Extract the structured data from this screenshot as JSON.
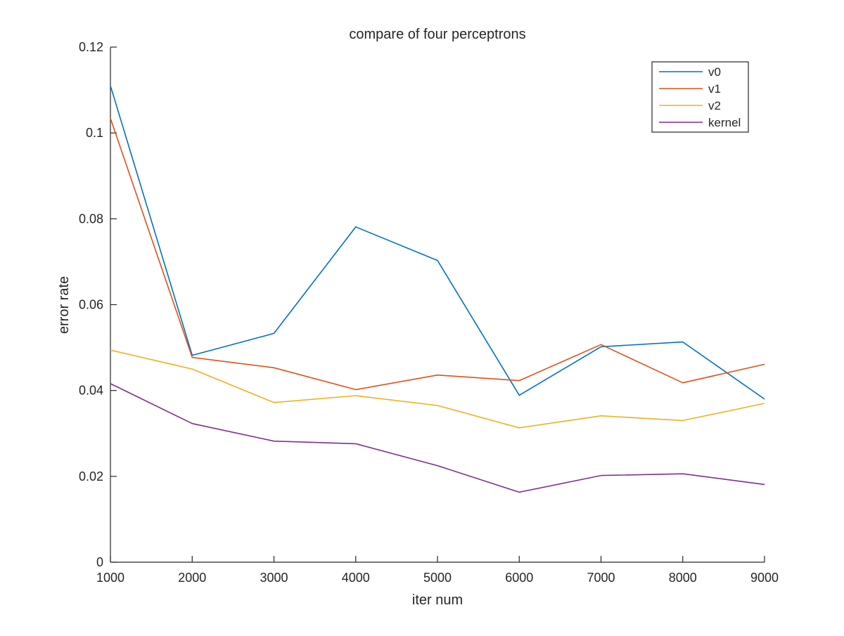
{
  "chart_data": {
    "type": "line",
    "title": "compare of four perceptrons",
    "xlabel": "iter num",
    "ylabel": "error rate",
    "x": [
      1000,
      2000,
      3000,
      4000,
      5000,
      6000,
      7000,
      8000,
      9000
    ],
    "xlim": [
      1000,
      9000
    ],
    "ylim": [
      0,
      0.12
    ],
    "xticks": [
      1000,
      2000,
      3000,
      4000,
      5000,
      6000,
      7000,
      8000,
      9000
    ],
    "xtick_labels": [
      "1000",
      "2000",
      "3000",
      "4000",
      "5000",
      "6000",
      "7000",
      "8000",
      "9000"
    ],
    "yticks": [
      0,
      0.02,
      0.04,
      0.06,
      0.08,
      0.1,
      0.12
    ],
    "ytick_labels": [
      "0",
      "0.02",
      "0.04",
      "0.06",
      "0.08",
      "0.1",
      "0.12"
    ],
    "grid": false,
    "legend_position": "top-right",
    "series": [
      {
        "name": "v0",
        "color": "#0072BD",
        "values": [
          0.111,
          0.0482,
          0.0533,
          0.0781,
          0.0703,
          0.0389,
          0.0502,
          0.0513,
          0.038
        ]
      },
      {
        "name": "v1",
        "color": "#D95319",
        "values": [
          0.1034,
          0.0477,
          0.0453,
          0.0402,
          0.0436,
          0.0423,
          0.0507,
          0.0418,
          0.0461
        ]
      },
      {
        "name": "v2",
        "color": "#EDB120",
        "values": [
          0.0494,
          0.045,
          0.0372,
          0.0388,
          0.0365,
          0.0313,
          0.0341,
          0.033,
          0.037
        ]
      },
      {
        "name": "kernel",
        "color": "#7E2F8E",
        "values": [
          0.0416,
          0.0323,
          0.0282,
          0.0276,
          0.0225,
          0.0163,
          0.0202,
          0.0206,
          0.0181
        ]
      }
    ]
  }
}
